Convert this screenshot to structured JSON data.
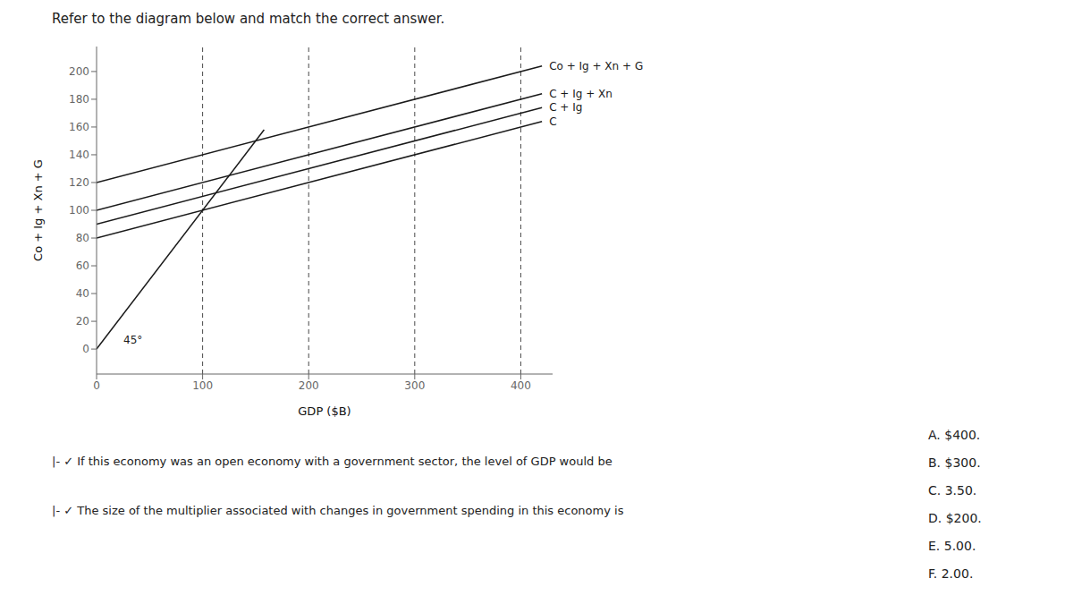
{
  "chart_data": {
    "type": "line",
    "title": "Refer to the diagram below and match the correct answer.",
    "xlabel": "GDP ($B)",
    "ylabel": "Co + Ig + Xn + G",
    "color": "#1a1a1a",
    "grid": false,
    "xlim": [
      0,
      430
    ],
    "ylim": [
      -18,
      218
    ],
    "xticks": [
      0,
      100,
      200,
      300,
      400
    ],
    "yticks": [
      0,
      20,
      40,
      60,
      80,
      100,
      120,
      140,
      160,
      180,
      200
    ],
    "series": [
      {
        "x": [
          0,
          158
        ],
        "values": [
          0,
          158
        ]
      },
      {
        "name": "C",
        "x": [
          0,
          420
        ],
        "values": [
          80,
          164
        ]
      },
      {
        "name": "C + Ig",
        "x": [
          0,
          420
        ],
        "values": [
          90,
          174
        ]
      },
      {
        "name": "C + Ig + Xn",
        "x": [
          0,
          420
        ],
        "values": [
          100,
          184
        ]
      },
      {
        "name": "Co + Ig + Xn + G",
        "x": [
          0,
          420
        ],
        "values": [
          120,
          204
        ]
      }
    ],
    "vlines": [
      100,
      200,
      300,
      400
    ],
    "annotations": [
      {
        "text": "45°"
      }
    ],
    "questions": [
      "|-  ✓  If this economy was an open economy with a government sector, the level of GDP would be",
      "|-  ✓  The size of the multiplier associated with changes in government spending in this economy is"
    ],
    "answers": [
      "A. $400.",
      "B. $300.",
      "C. 3.50.",
      "D. $200.",
      "E. 5.00.",
      "F. 2.00."
    ]
  }
}
